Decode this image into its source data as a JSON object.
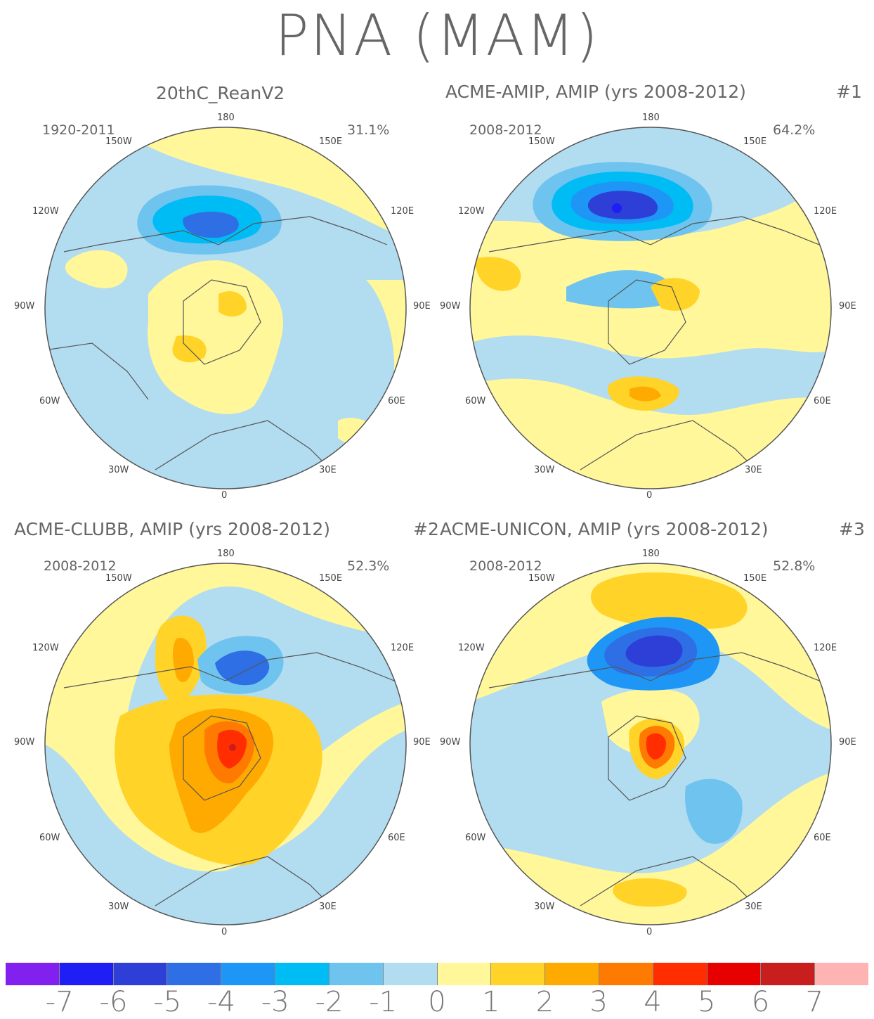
{
  "title": "PNA (MAM)",
  "panels": [
    {
      "title": "20thC_ReanV2",
      "tag": "",
      "years": "1920-2011",
      "percent": "31.1%"
    },
    {
      "title": "ACME-AMIP, AMIP (yrs 2008-2012)",
      "tag": "#1",
      "years": "2008-2012",
      "percent": "64.2%"
    },
    {
      "title": "ACME-CLUBB, AMIP (yrs 2008-2012)",
      "tag": "#2",
      "years": "2008-2012",
      "percent": "52.3%"
    },
    {
      "title": "ACME-UNICON, AMIP (yrs 2008-2012)",
      "tag": "#3",
      "years": "2008-2012",
      "percent": "52.8%"
    }
  ],
  "lon_labels": {
    "top": "180",
    "upper_left": "150W",
    "upper_right": "150E",
    "left_high": "120W",
    "right_high": "120E",
    "left": "90W",
    "right": "90E",
    "left_low": "60W",
    "right_low": "60E",
    "lower_left": "30W",
    "lower_right": "30E",
    "bottom": "0"
  },
  "colorbar": {
    "ticks": [
      "-7",
      "-6",
      "-5",
      "-4",
      "-3",
      "-2",
      "-1",
      "0",
      "1",
      "2",
      "3",
      "4",
      "5",
      "6",
      "7"
    ],
    "colors": [
      "#8220f0",
      "#1e1ef5",
      "#2e3fd8",
      "#2f6fe6",
      "#1e96f5",
      "#00bcf5",
      "#6ec4ee",
      "#b2dcf0",
      "#fff79a",
      "#ffd328",
      "#ffaa00",
      "#ff7a00",
      "#ff2d00",
      "#e60000",
      "#c81e1e",
      "#ffb4b4"
    ]
  },
  "colors": {
    "level_neg1": "#b2dcf0",
    "level_0": "#fff79a",
    "coast": "#555555"
  }
}
